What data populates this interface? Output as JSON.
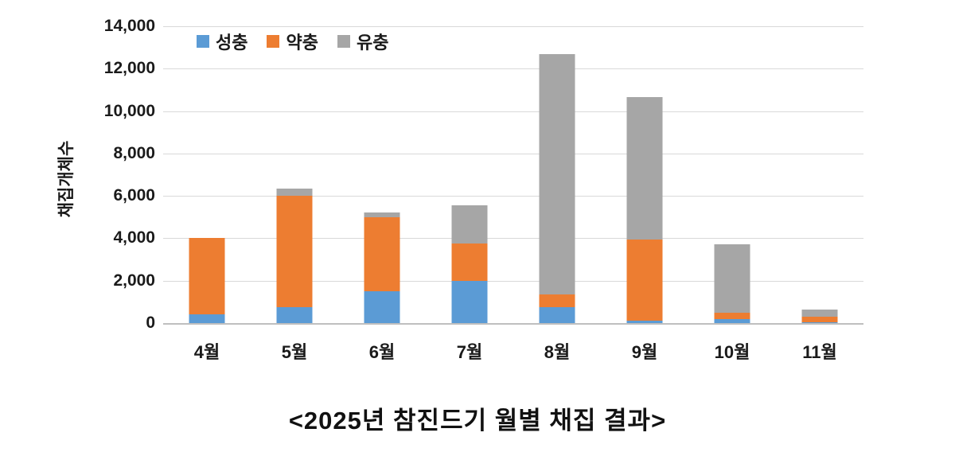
{
  "title": "<2025년 참진드기 월별 채집 결과>",
  "y_axis": {
    "title": "채집개체수",
    "tick_labels": [
      "14,000",
      "12,000",
      "10,000",
      "8,000",
      "6,000",
      "4,000",
      "2,000",
      "0"
    ]
  },
  "legend": {
    "items": [
      {
        "label": "성충",
        "color": "#5B9BD5"
      },
      {
        "label": "약충",
        "color": "#ED7D31"
      },
      {
        "label": "유충",
        "color": "#A6A6A6"
      }
    ]
  },
  "chart_data": {
    "type": "bar",
    "stacked": true,
    "title": "<2025년 참진드기 월별 채집 결과>",
    "xlabel": "",
    "ylabel": "채집개체수",
    "ylim": [
      0,
      14000
    ],
    "ytick_step": 2000,
    "grid": true,
    "legend_position": "top-left-inside",
    "categories": [
      "4월",
      "5월",
      "6월",
      "7월",
      "8월",
      "9월",
      "10월",
      "11월"
    ],
    "series": [
      {
        "name": "성충",
        "color": "#5B9BD5",
        "values": [
          400,
          750,
          1500,
          2000,
          750,
          100,
          200,
          50
        ]
      },
      {
        "name": "약충",
        "color": "#ED7D31",
        "values": [
          3600,
          5250,
          3500,
          1750,
          600,
          3850,
          300,
          250
        ]
      },
      {
        "name": "유충",
        "color": "#A6A6A6",
        "values": [
          0,
          350,
          200,
          1800,
          11350,
          6700,
          3200,
          350
        ]
      }
    ],
    "totals": [
      4000,
      6350,
      5200,
      5550,
      12700,
      10650,
      3700,
      650
    ]
  }
}
